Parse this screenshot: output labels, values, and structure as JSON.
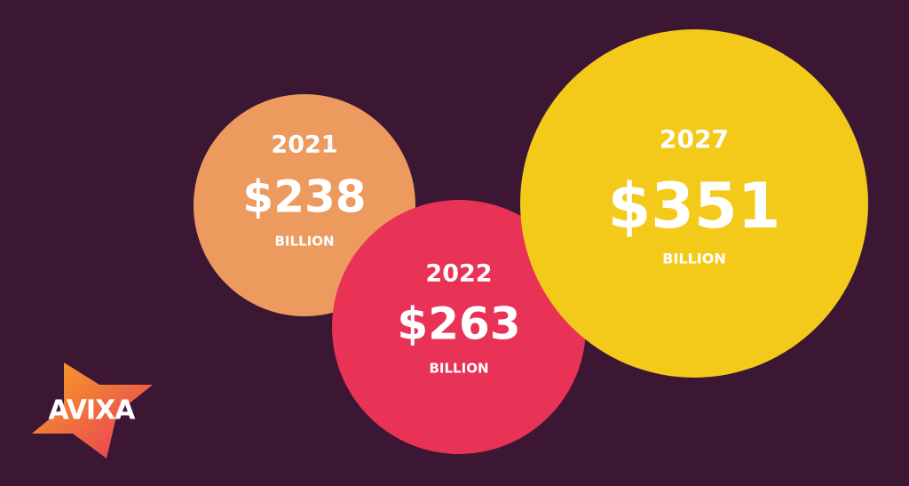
{
  "bubbles": [
    {
      "year": "2021",
      "amount": "$238",
      "unit": "BILLION"
    },
    {
      "year": "2022",
      "amount": "$263",
      "unit": "BILLION"
    },
    {
      "year": "2027",
      "amount": "$351",
      "unit": "BILLION"
    }
  ],
  "logo": {
    "text": "AVIXA"
  }
}
